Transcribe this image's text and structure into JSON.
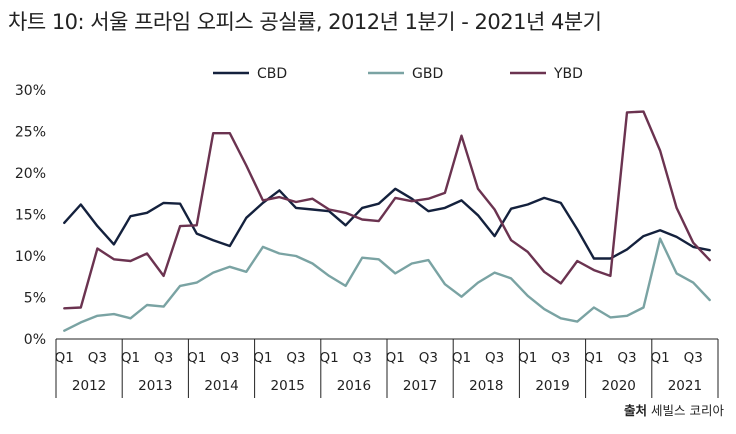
{
  "title": "차트 10: 서울 프라임 오피스 공실률, 2012년 1분기 - 2021년 4분기",
  "source_label": "출처",
  "source_value": "세빌스 코리아",
  "colors": {
    "CBD": "#14213d",
    "GBD": "#7aa3a3",
    "YBD": "#6b3350",
    "axis": "#222222"
  },
  "chart_data": {
    "type": "line",
    "title": "차트 10: 서울 프라임 오피스 공실률, 2012년 1분기 - 2021년 4분기",
    "xlabel": "",
    "ylabel": "",
    "ylim": [
      0,
      30
    ],
    "yticks": [
      "0%",
      "5%",
      "10%",
      "15%",
      "20%",
      "25%",
      "30%"
    ],
    "ytick_values": [
      0,
      5,
      10,
      15,
      20,
      25,
      30
    ],
    "x": [
      "2012 Q1",
      "2012 Q2",
      "2012 Q3",
      "2012 Q4",
      "2013 Q1",
      "2013 Q2",
      "2013 Q3",
      "2013 Q4",
      "2014 Q1",
      "2014 Q2",
      "2014 Q3",
      "2014 Q4",
      "2015 Q1",
      "2015 Q2",
      "2015 Q3",
      "2015 Q4",
      "2016 Q1",
      "2016 Q2",
      "2016 Q3",
      "2016 Q4",
      "2017 Q1",
      "2017 Q2",
      "2017 Q3",
      "2017 Q4",
      "2018 Q1",
      "2018 Q2",
      "2018 Q3",
      "2018 Q4",
      "2019 Q1",
      "2019 Q2",
      "2019 Q3",
      "2019 Q4",
      "2020 Q1",
      "2020 Q2",
      "2020 Q3",
      "2020 Q4",
      "2021 Q1",
      "2021 Q2",
      "2021 Q3",
      "2021 Q4"
    ],
    "quarter_labels": [
      "Q1",
      "Q3"
    ],
    "years": [
      "2012",
      "2013",
      "2014",
      "2015",
      "2016",
      "2017",
      "2018",
      "2019",
      "2020",
      "2021"
    ],
    "grid": false,
    "legend_position": "top-center",
    "series": [
      {
        "name": "CBD",
        "color": "#14213d",
        "values": [
          14.0,
          16.2,
          13.6,
          11.4,
          14.8,
          15.2,
          16.4,
          16.3,
          12.7,
          11.9,
          11.2,
          14.6,
          16.4,
          17.9,
          15.8,
          15.6,
          15.4,
          13.7,
          15.8,
          16.3,
          18.1,
          16.9,
          15.4,
          15.8,
          16.7,
          14.9,
          12.4,
          15.7,
          16.2,
          17.0,
          16.4,
          13.2,
          9.7,
          9.7,
          10.8,
          12.4,
          13.1,
          12.3,
          11.1,
          10.7
        ]
      },
      {
        "name": "GBD",
        "color": "#7aa3a3",
        "values": [
          1.0,
          2.0,
          2.8,
          3.0,
          2.5,
          4.1,
          3.9,
          6.4,
          6.8,
          8.0,
          8.7,
          8.1,
          11.1,
          10.3,
          10.0,
          9.1,
          7.6,
          6.4,
          9.8,
          9.6,
          7.9,
          9.1,
          9.5,
          6.6,
          5.1,
          6.8,
          8.0,
          7.3,
          5.2,
          3.6,
          2.5,
          2.1,
          3.8,
          2.6,
          2.8,
          3.8,
          12.1,
          7.9,
          6.8,
          4.7
        ]
      },
      {
        "name": "YBD",
        "color": "#6b3350",
        "values": [
          3.7,
          3.8,
          10.9,
          9.6,
          9.4,
          10.3,
          7.6,
          13.6,
          13.7,
          24.8,
          24.8,
          20.9,
          16.7,
          17.1,
          16.5,
          16.9,
          15.6,
          15.2,
          14.4,
          14.2,
          17.0,
          16.6,
          16.9,
          17.6,
          24.5,
          18.1,
          15.6,
          11.9,
          10.5,
          8.1,
          6.7,
          9.4,
          8.3,
          7.6,
          27.3,
          27.4,
          22.7,
          15.8,
          11.6,
          9.5
        ]
      }
    ]
  }
}
